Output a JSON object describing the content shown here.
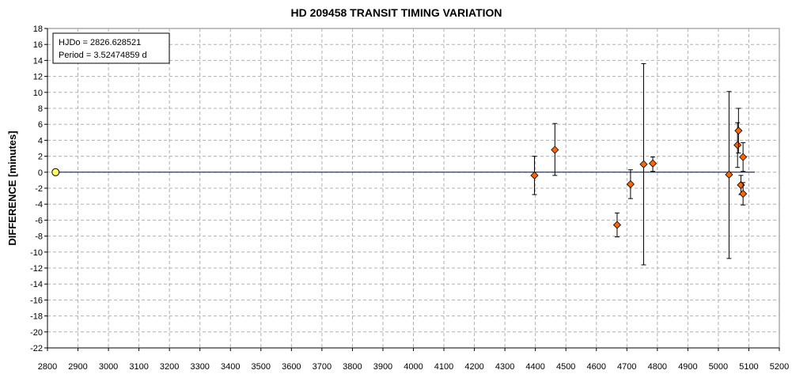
{
  "chart_data": {
    "type": "scatter",
    "title": "HD 209458 TRANSIT TIMING VARIATION",
    "xlabel": "",
    "ylabel": "DIFFERENCE [minutes]",
    "xlim": [
      2800,
      5200
    ],
    "ylim": [
      -22,
      18
    ],
    "x_ticks": [
      2800,
      2900,
      3000,
      3100,
      3200,
      3300,
      3400,
      3500,
      3600,
      3700,
      3800,
      3900,
      4000,
      4100,
      4200,
      4300,
      4400,
      4500,
      4600,
      4700,
      4800,
      4900,
      5000,
      5100,
      5200
    ],
    "y_ticks": [
      18,
      16,
      14,
      12,
      10,
      8,
      6,
      4,
      2,
      0,
      -2,
      -4,
      -6,
      -8,
      -10,
      -12,
      -14,
      -16,
      -18,
      -20,
      -22
    ],
    "grid": true,
    "legend_box": {
      "line1": "HJDo = 2826.628521",
      "line2": "Period = 3.52474859 d",
      "position": "top-left"
    },
    "reference_line": {
      "y": 0,
      "x_start": 2826.6,
      "x_end": 5120,
      "color": "#000080"
    },
    "reference_point": {
      "x": 2826.6,
      "y": 0,
      "color": "#ffff66"
    },
    "series": [
      {
        "marker": "diamond",
        "color": "#ff6600",
        "points": [
          {
            "x": 4397,
            "y": -0.4,
            "err_low": -2.8,
            "err_high": 2.0
          },
          {
            "x": 4464,
            "y": 2.8,
            "err_low": -0.4,
            "err_high": 6.1
          },
          {
            "x": 4668,
            "y": -6.6,
            "err_low": -8.1,
            "err_high": -5.1
          },
          {
            "x": 4712,
            "y": -1.5,
            "err_low": -3.3,
            "err_high": 0.3
          },
          {
            "x": 4755,
            "y": 1.0,
            "err_low": -11.6,
            "err_high": 13.6
          },
          {
            "x": 4785,
            "y": 1.1,
            "err_low": 0.1,
            "err_high": 1.9
          },
          {
            "x": 5035,
            "y": -0.3,
            "err_low": -10.8,
            "err_high": 10.1
          },
          {
            "x": 5063,
            "y": 3.4,
            "err_low": 0.6,
            "err_high": 6.2
          },
          {
            "x": 5066,
            "y": 5.2,
            "err_low": 2.4,
            "err_high": 8.0
          },
          {
            "x": 5074,
            "y": -1.6,
            "err_low": -2.8,
            "err_high": -0.4
          },
          {
            "x": 5081,
            "y": 1.9,
            "err_low": 0.1,
            "err_high": 3.7
          },
          {
            "x": 5081,
            "y": -2.7,
            "err_low": -4.1,
            "err_high": -1.3
          }
        ]
      }
    ]
  }
}
